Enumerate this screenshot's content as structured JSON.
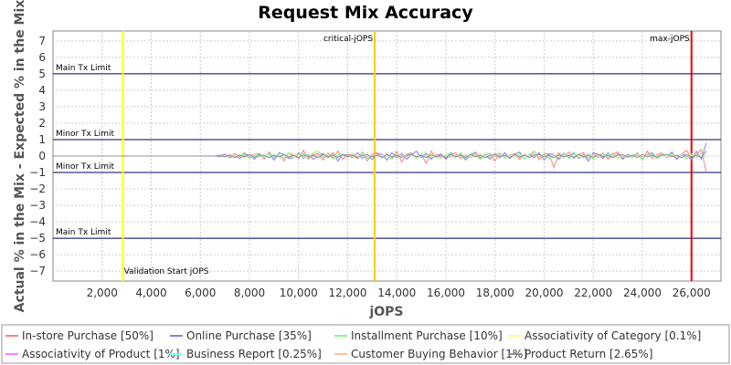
{
  "chart_data": {
    "type": "line",
    "title": "Request Mix Accuracy",
    "xlabel": "jOPS",
    "ylabel": "Actual % in the Mix - Expected % in the Mix",
    "xlim": [
      0,
      27200
    ],
    "ylim": [
      -7.6,
      7.6
    ],
    "x_ticks": [
      2000,
      4000,
      6000,
      8000,
      10000,
      12000,
      14000,
      16000,
      18000,
      20000,
      22000,
      24000,
      26000
    ],
    "x_tick_labels": [
      "2,000",
      "4,000",
      "6,000",
      "8,000",
      "10,000",
      "12,000",
      "14,000",
      "16,000",
      "18,000",
      "20,000",
      "22,000",
      "24,000",
      "26,000"
    ],
    "y_ticks": [
      -7,
      -6,
      -5,
      -4,
      -3,
      -2,
      -1,
      0,
      1,
      2,
      3,
      4,
      5,
      6,
      7
    ],
    "y_tick_labels": [
      "−7",
      "−6",
      "−5",
      "−4",
      "−3",
      "−2",
      "−1",
      "0",
      "1",
      "2",
      "3",
      "4",
      "5",
      "6",
      "7"
    ],
    "grid": true,
    "legend_position": "bottom",
    "series": [
      {
        "name": "In-store Purchase [50%]",
        "color": "#ff8080"
      },
      {
        "name": "Online Purchase [35%]",
        "color": "#8080ff"
      },
      {
        "name": "Installment Purchase [10%]",
        "color": "#80ff80"
      },
      {
        "name": "Associativity of Category [0.1%]",
        "color": "#ffff80"
      },
      {
        "name": "Associativity of Product [1%]",
        "color": "#ff80ff"
      },
      {
        "name": "Business Report [0.25%]",
        "color": "#80ffff"
      },
      {
        "name": "Customer Buying Behavior [1%]",
        "color": "#ffc0a0"
      },
      {
        "name": "Product Return [2.65%]",
        "color": "#909090"
      }
    ],
    "x_step": 200,
    "x_start": 0,
    "series_values": [
      [
        0,
        0,
        0,
        0,
        0,
        0,
        0,
        0,
        0,
        0,
        0,
        0,
        0,
        0,
        0,
        0,
        0,
        0,
        0,
        0,
        0,
        0,
        0,
        0,
        0,
        0,
        0,
        0,
        0,
        0,
        0,
        0,
        0,
        0,
        0.05,
        0.1,
        -0.1,
        0.15,
        -0.05,
        0.2,
        -0.1,
        0.1,
        0.15,
        -0.2,
        0.25,
        -0.1,
        0.1,
        -0.3,
        0.2,
        0.05,
        -0.15,
        0.35,
        -0.2,
        0.1,
        0.15,
        -0.25,
        0.2,
        -0.1,
        0.3,
        -0.2,
        0.1,
        0.05,
        -0.15,
        0.25,
        -0.3,
        0.1,
        0.2,
        -0.1,
        0.15,
        -0.2,
        0.3,
        -0.35,
        0.1,
        0.2,
        -0.15,
        0.1,
        -0.45,
        0.3,
        -0.1,
        0.15,
        -0.2,
        0.1,
        0.2,
        -0.15,
        0.05,
        -0.1,
        0.25,
        -0.2,
        0.1,
        0.15,
        -0.3,
        0.2,
        -0.1,
        0.05,
        0.15,
        -0.2,
        0.1,
        -0.1,
        0.3,
        -0.25,
        0.15,
        0.1,
        -0.7,
        0.2,
        -0.1,
        0.25,
        -0.15,
        0.1,
        0.2,
        -0.3,
        0.15,
        -0.1,
        0.2,
        -0.2,
        0.1,
        0.25,
        -0.15,
        0.1,
        -0.1,
        0.2,
        -0.25,
        0.3,
        -0.15,
        0.1,
        0.2,
        -0.1,
        0.15,
        -0.2,
        0.1,
        0.35,
        -0.2,
        0.1,
        0.4,
        -1.0
      ],
      [
        0,
        0,
        0,
        0,
        0,
        0,
        0,
        0,
        0,
        0,
        0,
        0,
        0,
        0,
        0,
        0,
        0,
        0,
        0,
        0,
        0,
        0,
        0,
        0,
        0,
        0,
        0,
        0,
        0,
        0,
        0,
        0,
        0,
        0,
        -0.05,
        0.1,
        -0.1,
        0.05,
        -0.15,
        0.1,
        0.05,
        -0.2,
        0.1,
        -0.1,
        0.15,
        -0.25,
        0.2,
        0.1,
        -0.15,
        -0.1,
        0.2,
        -0.15,
        0.1,
        -0.2,
        0.05,
        0.15,
        -0.1,
        0.2,
        -0.3,
        0.1,
        0.05,
        -0.1,
        0.2,
        -0.15,
        0.1,
        -0.2,
        0.15,
        0.1,
        -0.25,
        0.2,
        -0.1,
        0.15,
        -0.2,
        0.05,
        0.3,
        -0.1,
        0.15,
        -0.2,
        0.1,
        0.05,
        -0.15,
        0.2,
        -0.1,
        0.15,
        -0.25,
        0.1,
        0.2,
        -0.1,
        0.05,
        -0.2,
        0.15,
        -0.1,
        0.2,
        -0.15,
        0.1,
        0.25,
        -0.2,
        0.1,
        -0.1,
        0.2,
        -0.25,
        0.15,
        0.1,
        -0.2,
        0.15,
        -0.1,
        0.2,
        -0.15,
        0.1,
        -0.3,
        0.2,
        0.1,
        -0.15,
        0.2,
        -0.1,
        0.15,
        -0.2,
        0.1,
        -0.05,
        0.15,
        -0.2,
        0.1,
        0.2,
        -0.15,
        0.1,
        -0.1,
        0.25,
        -0.2,
        0.1,
        0.05,
        -0.25,
        0.3,
        -0.2,
        0.8
      ],
      [
        0,
        0,
        0,
        0,
        0,
        0,
        0,
        0,
        0,
        0,
        0,
        0,
        0,
        0,
        0,
        0,
        0,
        0,
        0,
        0,
        0,
        0,
        0,
        0,
        0,
        0,
        0,
        0,
        0,
        0,
        0,
        0,
        0,
        0,
        0.05,
        -0.05,
        0.1,
        -0.1,
        0.05,
        0.1,
        -0.15,
        0.1,
        0.05,
        -0.1,
        0.15,
        -0.05,
        0.1,
        -0.15,
        0.2,
        -0.1,
        0.05,
        0.15,
        -0.1,
        0.2,
        0.3,
        -0.1,
        0.15,
        -0.2,
        0.1,
        0.05,
        -0.1,
        0.15,
        -0.1,
        0.2,
        -0.15,
        0.05,
        0.1,
        -0.1,
        0.15,
        -0.2,
        0.1,
        0.05,
        -0.1,
        0.15,
        -0.15,
        0.1,
        0.2,
        -0.1,
        0.05,
        -0.15,
        0.1,
        0.15,
        -0.1,
        0.2,
        -0.15,
        0.1,
        0.05,
        -0.2,
        0.15,
        -0.1,
        0.1,
        0.2,
        -0.15,
        0.1,
        -0.1,
        0.15,
        -0.2,
        0.1,
        0.3,
        -0.1,
        0.15,
        -0.2,
        0.1,
        -0.1,
        0.2,
        -0.15,
        0.1,
        0.05,
        -0.1,
        0.15,
        -0.2,
        0.1,
        0.15,
        -0.1,
        0.2,
        -0.15,
        0.1,
        -0.1,
        0.05,
        0.15,
        -0.2,
        0.1,
        0.1,
        -0.15,
        0.2,
        -0.1,
        0.15,
        -0.05,
        0.1,
        -0.2,
        0.15,
        -0.1,
        0.2,
        -0.1
      ],
      [
        0,
        0,
        0,
        0,
        0,
        0,
        0,
        0,
        0,
        0,
        0,
        0,
        0,
        0,
        0,
        0,
        0,
        0,
        0,
        0,
        0,
        0,
        0,
        0,
        0,
        0,
        0,
        0,
        0,
        0,
        0,
        0,
        0,
        0,
        0,
        0.02,
        -0.02,
        0.03,
        0,
        -0.03,
        0.02,
        0,
        -0.02,
        0.03,
        0,
        0.02,
        -0.02,
        0,
        0.03,
        -0.02,
        0,
        0.02,
        -0.03,
        0,
        0.02,
        -0.02,
        0.03,
        0,
        -0.02,
        0.02,
        0,
        -0.03,
        0.02,
        0,
        0.02,
        -0.02,
        0,
        0.03,
        -0.02,
        0.02,
        0,
        -0.02,
        0.03,
        0,
        -0.02,
        0.02,
        0,
        -0.03,
        0.02,
        0,
        0.02,
        -0.02,
        0.03,
        0,
        -0.02,
        0.02,
        0,
        -0.02,
        0.03,
        0,
        -0.02,
        0.02,
        0,
        0.02,
        -0.03,
        0,
        0.02,
        -0.02,
        0.02,
        0,
        -0.02,
        0.03,
        0,
        -0.02,
        0.02,
        0,
        0.02,
        -0.02,
        0,
        0.03,
        -0.02,
        0.02,
        0,
        -0.02,
        0.02,
        0,
        -0.03,
        0.02,
        0,
        0.02,
        -0.02,
        0.03,
        0,
        -0.02,
        0.02,
        0,
        -0.02,
        0.02,
        0,
        0.02,
        -0.02,
        0.02
      ],
      [
        0,
        0,
        0,
        0,
        0,
        0,
        0,
        0,
        0,
        0,
        0,
        0,
        0,
        0,
        0,
        0,
        0,
        0,
        0,
        0,
        0,
        0,
        0,
        0,
        0,
        0,
        0,
        0,
        0,
        0,
        0,
        0,
        0,
        0,
        0.02,
        -0.03,
        0.05,
        -0.02,
        0.03,
        -0.05,
        0.02,
        0.04,
        -0.03,
        0.02,
        -0.04,
        0.05,
        -0.02,
        0.03,
        -0.05,
        0.02,
        0.04,
        -0.03,
        0.02,
        -0.02,
        0.05,
        -0.03,
        0.02,
        0.04,
        -0.05,
        0.02,
        -0.03,
        0.05,
        -0.02,
        0.03,
        -0.04,
        0.02,
        0.05,
        -0.03,
        0.02,
        -0.05,
        0.03,
        0.02,
        -0.04,
        0.05,
        -0.02,
        0.03,
        -0.05,
        0.02,
        0.04,
        -0.03,
        0.02,
        -0.04,
        0.05,
        -0.02,
        0.03,
        -0.05,
        0.02,
        0.04,
        -0.03,
        0.02,
        -0.02,
        0.05,
        -0.03,
        0.02,
        0.04,
        -0.05,
        0.02,
        -0.03,
        0.05,
        -0.02,
        0.03,
        -0.04,
        0.02,
        0.05,
        -0.03,
        0.02,
        -0.05,
        0.03,
        0.02,
        -0.04,
        0.05,
        -0.02,
        0.03,
        -0.05,
        0.02,
        0.04,
        -0.03,
        0.02,
        -0.04,
        0.05,
        -0.02,
        0.03,
        -0.05,
        0.02,
        0.04,
        -0.03,
        0.02,
        -0.02,
        0.05,
        -0.03,
        0.02,
        0.04
      ],
      [
        0,
        0,
        0,
        0,
        0,
        0,
        0,
        0,
        0,
        0,
        0,
        0,
        0,
        0,
        0,
        0,
        0,
        0,
        0,
        0,
        0,
        0,
        0,
        0,
        0,
        0,
        0,
        0,
        0,
        0,
        0,
        0,
        0,
        0,
        0.01,
        -0.02,
        0.02,
        -0.01,
        0.02,
        -0.02,
        0.01,
        0.02,
        -0.02,
        0.01,
        -0.02,
        0.02,
        -0.01,
        0.02,
        -0.02,
        0.01,
        0.02,
        -0.02,
        0.01,
        -0.01,
        0.02,
        -0.02,
        0.01,
        0.02,
        -0.02,
        0.01,
        -0.02,
        0.02,
        -0.01,
        0.02,
        -0.02,
        0.01,
        0.02,
        -0.02,
        0.01,
        -0.02,
        0.02,
        0.01,
        -0.02,
        0.02,
        -0.01,
        0.02,
        -0.02,
        0.01,
        0.02,
        -0.02,
        0.01,
        -0.02,
        0.02,
        -0.01,
        0.02,
        -0.02,
        0.01,
        0.02,
        -0.02,
        0.01,
        -0.01,
        0.02,
        -0.02,
        0.01,
        0.02,
        -0.02,
        0.01,
        -0.02,
        0.02,
        -0.01,
        0.02,
        -0.02,
        0.01,
        0.02,
        -0.02,
        0.01,
        -0.02,
        0.02,
        0.01,
        -0.02,
        0.02,
        -0.01,
        0.02,
        -0.02,
        0.01,
        0.02,
        -0.02,
        0.01,
        -0.02,
        0.02,
        -0.01,
        0.02,
        -0.02,
        0.01,
        0.02,
        -0.02,
        0.01,
        -0.01,
        0.02,
        -0.02,
        0.01,
        0.02
      ],
      [
        0,
        0,
        0,
        0,
        0,
        0,
        0,
        0,
        0,
        0,
        0,
        0,
        0,
        0,
        0,
        0,
        0,
        0,
        0,
        0,
        0,
        0,
        0,
        0,
        0,
        0,
        0,
        0,
        0,
        0,
        0,
        0,
        0,
        0,
        0.03,
        -0.05,
        0.1,
        -0.05,
        0.08,
        -0.1,
        0.05,
        0.1,
        -0.08,
        0.05,
        -0.1,
        0.08,
        -0.05,
        0.1,
        -0.1,
        0.05,
        0.08,
        -0.1,
        0.05,
        -0.05,
        0.1,
        -0.08,
        0.05,
        0.1,
        -0.1,
        0.05,
        -0.08,
        0.1,
        -0.05,
        0.08,
        -0.1,
        0.05,
        0.1,
        -0.08,
        0.05,
        -0.1,
        0.08,
        0.05,
        -0.1,
        0.1,
        -0.05,
        0.08,
        -0.1,
        0.05,
        0.1,
        -0.08,
        0.05,
        -0.1,
        0.1,
        -0.05,
        0.08,
        -0.1,
        0.05,
        0.1,
        -0.08,
        0.05,
        -0.05,
        0.1,
        -0.08,
        0.05,
        0.1,
        -0.1,
        0.05,
        -0.08,
        0.1,
        -0.05,
        0.08,
        -0.1,
        0.05,
        0.1,
        -0.08,
        0.05,
        -0.1,
        0.08,
        0.05,
        -0.1,
        0.1,
        -0.05,
        0.08,
        -0.1,
        0.05,
        0.1,
        -0.08,
        0.05,
        -0.1,
        0.1,
        -0.05,
        0.08,
        -0.1,
        0.05,
        0.1,
        -0.08,
        0.05,
        -0.05,
        0.1,
        -0.08,
        0.05,
        0.1
      ],
      [
        0,
        0,
        0,
        0,
        0,
        0,
        0,
        0,
        0,
        0,
        0,
        0,
        0,
        0,
        0,
        0,
        0,
        0,
        0,
        0,
        0,
        0,
        0,
        0,
        0,
        0,
        0,
        0,
        0,
        0,
        0,
        0,
        0,
        0,
        0.02,
        -0.05,
        0.05,
        -0.1,
        0.05,
        -0.05,
        0.1,
        -0.08,
        0.05,
        0.05,
        -0.1,
        0.05,
        -0.05,
        0.1,
        -0.05,
        0.05,
        -0.1,
        0.08,
        -0.05,
        0.05,
        -0.1,
        0.1,
        -0.05,
        0.05,
        -0.08,
        0.1,
        -0.05,
        0.05,
        -0.1,
        0.05,
        0.08,
        -0.05,
        0.05,
        -0.1,
        0.1,
        -0.05,
        0.05,
        -0.08,
        0.05,
        0.1,
        -0.05,
        0.05,
        -0.1,
        0.08,
        -0.05,
        0.05,
        -0.1,
        0.1,
        -0.05,
        0.05,
        -0.08,
        0.1,
        -0.05,
        0.05,
        -0.1,
        0.05,
        0.08,
        -0.05,
        0.05,
        -0.1,
        0.1,
        -0.05,
        0.05,
        -0.08,
        0.05,
        0.1,
        -0.05,
        0.05,
        -0.1,
        0.08,
        -0.05,
        0.05,
        -0.1,
        0.1,
        -0.05,
        0.05,
        -0.08,
        0.1,
        -0.05,
        0.05,
        -0.1,
        0.05,
        0.08,
        -0.05,
        0.05,
        -0.1,
        0.1,
        -0.05,
        0.05,
        -0.08,
        0.05,
        0.1,
        -0.05,
        0.05,
        -0.1,
        0.08,
        -0.05,
        0.05,
        -0.1,
        0.3
      ]
    ],
    "horizontal_limits": [
      {
        "y": 5,
        "label": "Main Tx Limit",
        "color": "#000066"
      },
      {
        "y": 1,
        "label": "Minor Tx Limit",
        "color": "#000066"
      },
      {
        "y": -1,
        "label": "Minor Tx Limit",
        "color": "#000066"
      },
      {
        "y": -5,
        "label": "Main Tx Limit",
        "color": "#000066"
      }
    ],
    "vertical_markers": [
      {
        "x": 2850,
        "label": "Validation Start jOPS",
        "label_pos": "bottom",
        "color": "#ffff00"
      },
      {
        "x": 13100,
        "label": "critical-jOPS",
        "label_pos": "top",
        "color": "#ffcc00"
      },
      {
        "x": 26000,
        "label": "max-jOPS",
        "label_pos": "top",
        "color": "#ee0000"
      }
    ]
  }
}
